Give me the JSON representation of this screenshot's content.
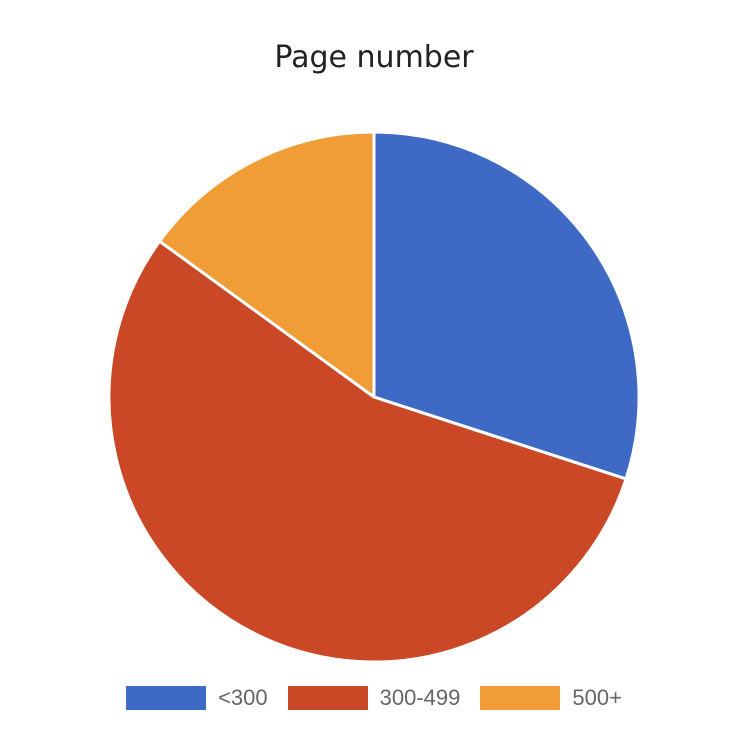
{
  "chart_data": {
    "type": "pie",
    "title": "Page number",
    "slices": [
      {
        "label": "<300",
        "value": 30,
        "color": "#3e69c5"
      },
      {
        "label": "300-499",
        "value": 55,
        "color": "#cb4827"
      },
      {
        "label": "500+",
        "value": 15,
        "color": "#f09d38"
      }
    ],
    "legend_position": "bottom",
    "start_angle_deg": 0,
    "direction": "clockwise"
  }
}
